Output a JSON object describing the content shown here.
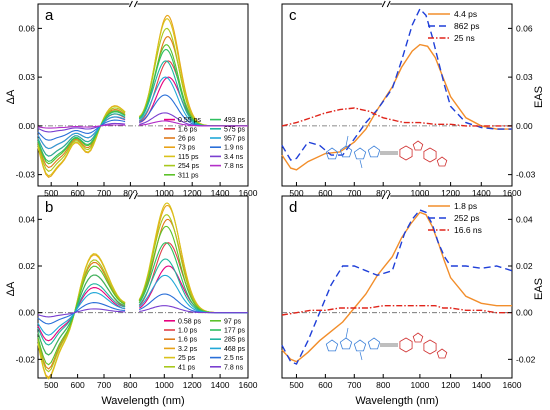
{
  "figure": {
    "ylabel_left": "ΔA",
    "ylabel_right": "EAS",
    "xlabel": "Wavelength (nm)",
    "xticks": [
      "500",
      "600",
      "700",
      "800",
      "1000",
      "1200",
      "1400",
      "1600"
    ]
  },
  "chart_data": [
    {
      "panel": "a",
      "type": "line",
      "xlabel": "Wavelength (nm)",
      "ylabel": "ΔA",
      "ylim": [
        -0.037,
        0.075
      ],
      "yticks": [
        "0.06",
        "0.03",
        "0.00",
        "-0.03"
      ],
      "legend_placement": "bottom-right",
      "baseline_series": [
        {
          "name": "0.55 ps",
          "color": "#e6007e",
          "peak": 0.03
        },
        {
          "name": "1.6 ps",
          "color": "#e0404a",
          "peak": 0.04
        },
        {
          "name": "26 ps",
          "color": "#e07a1a",
          "peak": 0.055
        },
        {
          "name": "73 ps",
          "color": "#e8a317",
          "peak": 0.068
        },
        {
          "name": "115 ps",
          "color": "#d9c21a",
          "peak": 0.066
        },
        {
          "name": "254 ps",
          "color": "#a8c81c",
          "peak": 0.06
        },
        {
          "name": "311 ps",
          "color": "#5cc22a",
          "peak": 0.05
        },
        {
          "name": "493 ps",
          "color": "#2fbf60",
          "peak": 0.047
        },
        {
          "name": "575 ps",
          "color": "#1fb5a0",
          "peak": 0.04
        },
        {
          "name": "957 ps",
          "color": "#22a8d8",
          "peak": 0.03
        },
        {
          "name": "1.9 ns",
          "color": "#2a6fd8",
          "peak": 0.019
        },
        {
          "name": "3.4 ns",
          "color": "#7a3fd0",
          "peak": 0.008
        },
        {
          "name": "7.8 ns",
          "color": "#b32fc8",
          "peak": 0.003
        }
      ]
    },
    {
      "panel": "b",
      "type": "line",
      "xlabel": "Wavelength (nm)",
      "ylabel": "ΔA",
      "ylim": [
        -0.028,
        0.05
      ],
      "yticks": [
        "0.04",
        "0.02",
        "0.00",
        "-0.02"
      ],
      "legend_placement": "bottom-right",
      "baseline_series": [
        {
          "name": "0.58 ps",
          "color": "#e6007e",
          "peak": 0.02
        },
        {
          "name": "1.0 ps",
          "color": "#e0404a",
          "peak": 0.03
        },
        {
          "name": "1.6 ps",
          "color": "#e07a1a",
          "peak": 0.04
        },
        {
          "name": "3.2 ps",
          "color": "#e8a317",
          "peak": 0.046
        },
        {
          "name": "25 ps",
          "color": "#d9c21a",
          "peak": 0.047
        },
        {
          "name": "41 ps",
          "color": "#a8c81c",
          "peak": 0.042
        },
        {
          "name": "97 ps",
          "color": "#5cc22a",
          "peak": 0.037
        },
        {
          "name": "177 ps",
          "color": "#2fbf60",
          "peak": 0.03
        },
        {
          "name": "285 ps",
          "color": "#1fb5a0",
          "peak": 0.023
        },
        {
          "name": "468 ps",
          "color": "#22a8d8",
          "peak": 0.016
        },
        {
          "name": "2.5 ns",
          "color": "#2a6fd8",
          "peak": 0.008
        },
        {
          "name": "7.8 ns",
          "color": "#7a3fd0",
          "peak": 0.003
        }
      ]
    },
    {
      "panel": "c",
      "type": "line",
      "xlabel": "Wavelength (nm)",
      "ylabel": "EAS",
      "ylim": [
        -0.037,
        0.075
      ],
      "yticks": [
        "0.06",
        "0.03",
        "0.00",
        "-0.03"
      ],
      "legend_placement": "top-right",
      "series": [
        {
          "name": "4.4 ps",
          "color": "#f28e2b",
          "dash": "",
          "x": [
            450,
            480,
            500,
            540,
            600,
            650,
            700,
            740,
            780,
            820,
            880,
            950,
            1000,
            1050,
            1100,
            1150,
            1200,
            1300,
            1400,
            1500,
            1600
          ],
          "y": [
            -0.018,
            -0.026,
            -0.027,
            -0.022,
            -0.017,
            -0.016,
            -0.01,
            -0.002,
            0.01,
            0.024,
            0.036,
            0.046,
            0.05,
            0.049,
            0.042,
            0.03,
            0.018,
            0.005,
            0.0,
            -0.002,
            -0.002
          ]
        },
        {
          "name": "862 ps",
          "color": "#1f3fd8",
          "dash": "7 4",
          "x": [
            450,
            480,
            500,
            540,
            580,
            620,
            660,
            700,
            740,
            780,
            820,
            880,
            950,
            1000,
            1040,
            1080,
            1120,
            1160,
            1200,
            1300,
            1400,
            1500,
            1600
          ],
          "y": [
            -0.012,
            -0.021,
            -0.02,
            -0.01,
            -0.012,
            -0.018,
            -0.018,
            -0.008,
            0.002,
            0.01,
            0.023,
            0.04,
            0.062,
            0.072,
            0.068,
            0.055,
            0.04,
            0.025,
            0.012,
            0.002,
            -0.001,
            -0.002,
            -0.002
          ]
        },
        {
          "name": "25 ns",
          "color": "#e0251b",
          "dash": "6 2 1.5 2",
          "x": [
            450,
            500,
            550,
            600,
            650,
            700,
            750,
            800,
            850,
            900,
            950,
            1000,
            1100,
            1200,
            1300,
            1400,
            1500,
            1600
          ],
          "y": [
            0.0,
            0.002,
            0.005,
            0.008,
            0.01,
            0.011,
            0.009,
            0.005,
            0.003,
            0.002,
            0.002,
            0.002,
            0.001,
            0.001,
            0.0,
            0.0,
            0.0,
            0.0
          ]
        }
      ]
    },
    {
      "panel": "d",
      "type": "line",
      "xlabel": "Wavelength (nm)",
      "ylabel": "EAS",
      "ylim": [
        -0.028,
        0.05
      ],
      "yticks": [
        "0.04",
        "0.02",
        "0.00",
        "-0.02"
      ],
      "legend_placement": "top-right",
      "series": [
        {
          "name": "1.8 ps",
          "color": "#f28e2b",
          "dash": "",
          "x": [
            450,
            480,
            500,
            540,
            580,
            620,
            660,
            700,
            740,
            780,
            820,
            880,
            940,
            1000,
            1040,
            1080,
            1120,
            1160,
            1200,
            1300,
            1400,
            1500,
            1600
          ],
          "y": [
            -0.016,
            -0.02,
            -0.021,
            -0.017,
            -0.012,
            -0.008,
            -0.004,
            0.002,
            0.008,
            0.016,
            0.024,
            0.032,
            0.038,
            0.043,
            0.042,
            0.037,
            0.03,
            0.022,
            0.015,
            0.007,
            0.004,
            0.003,
            0.003
          ]
        },
        {
          "name": "252 ps",
          "color": "#1f3fd8",
          "dash": "7 4",
          "x": [
            450,
            480,
            500,
            540,
            580,
            620,
            660,
            700,
            740,
            780,
            820,
            860,
            900,
            950,
            1000,
            1040,
            1080,
            1120,
            1160,
            1200,
            1300,
            1400,
            1500,
            1600
          ],
          "y": [
            -0.014,
            -0.021,
            -0.022,
            -0.012,
            0.0,
            0.012,
            0.02,
            0.02,
            0.018,
            0.016,
            0.018,
            0.026,
            0.034,
            0.04,
            0.044,
            0.043,
            0.038,
            0.03,
            0.024,
            0.02,
            0.02,
            0.019,
            0.02,
            0.018
          ]
        },
        {
          "name": "16.6 ns",
          "color": "#e0251b",
          "dash": "6 2 1.5 2",
          "x": [
            450,
            500,
            550,
            600,
            650,
            700,
            750,
            800,
            850,
            900,
            950,
            1000,
            1050,
            1100,
            1150,
            1200,
            1300,
            1400,
            1500,
            1600
          ],
          "y": [
            -0.001,
            0.0,
            0.001,
            0.001,
            0.002,
            0.002,
            0.002,
            0.003,
            0.003,
            0.003,
            0.003,
            0.003,
            0.003,
            0.003,
            0.002,
            0.002,
            0.001,
            0.001,
            0.0,
            0.0
          ]
        }
      ]
    }
  ]
}
